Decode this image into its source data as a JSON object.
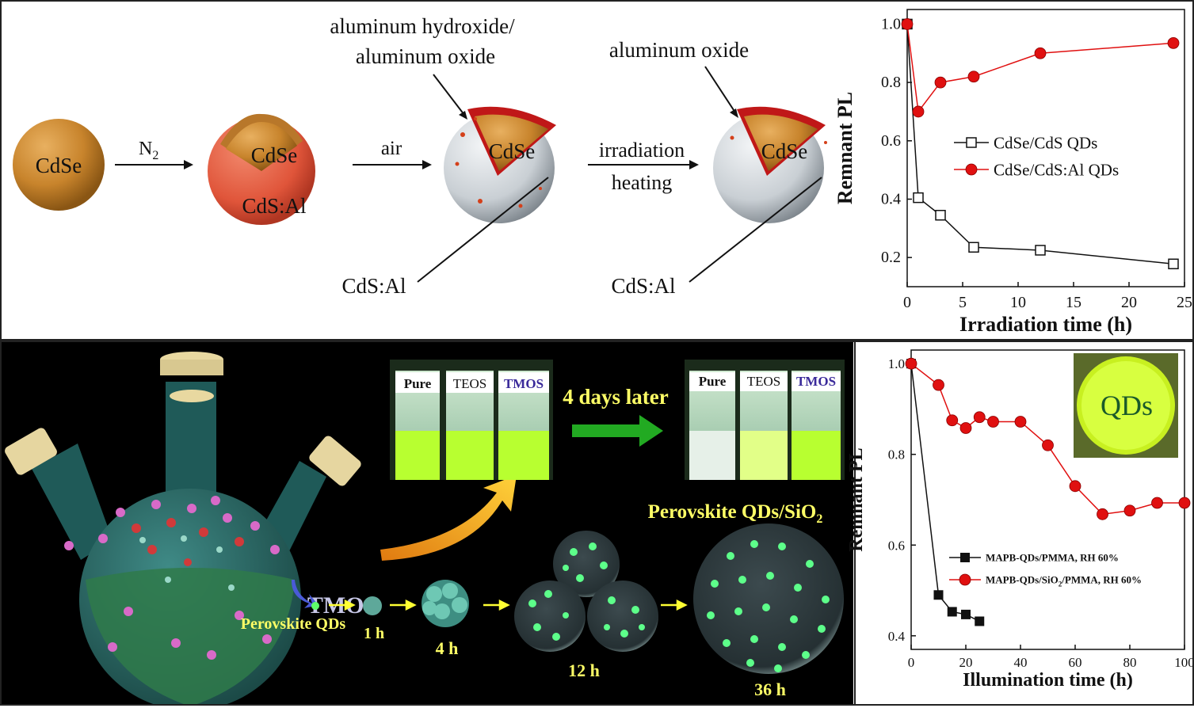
{
  "scheme": {
    "sphere1_label": "CdSe",
    "arrow1_label": "N",
    "arrow1_sub": "2",
    "sphere2_core": "CdSe",
    "sphere2_shell": "CdS:Al",
    "arrow2_label": "air",
    "callout_hydroxide_line1": "aluminum hydroxide/",
    "callout_hydroxide_line2": "aluminum oxide",
    "sphere3_core": "CdSe",
    "sphere3_pointer_label": "CdS:Al",
    "arrow3_label_line1": "irradiation",
    "arrow3_label_line2": "heating",
    "callout_oxide": "aluminum oxide",
    "sphere4_core": "CdSe",
    "sphere4_pointer_label": "CdS:Al"
  },
  "perovskite": {
    "vial_label_pure": "Pure",
    "vial_label_teos": "TEOS",
    "vial_label_tmos": "TMOS",
    "days_label": "4 days later",
    "reagent_label": "TMOS",
    "qd_label": "Perovskite QDs",
    "stage_1h": "1 h",
    "stage_4h": "4 h",
    "stage_12h": "12 h",
    "stage_36h": "36 h",
    "product_label": "Perovskite QDs/SiO",
    "product_sub": "2",
    "inset_label": "QDs"
  },
  "colors": {
    "red_series": "#e01010",
    "black_series": "#111111",
    "green_glow": "#9cff3a",
    "yellow_text": "#ffff66"
  },
  "chart_data": [
    {
      "type": "line",
      "xlabel": "Irradiation time (h)",
      "ylabel": "Remnant PL",
      "xlim": [
        0,
        25
      ],
      "ylim": [
        0.1,
        1.05
      ],
      "xticks": [
        0,
        5,
        10,
        15,
        20,
        25
      ],
      "yticks": [
        0.2,
        0.4,
        0.6,
        0.8,
        1.0
      ],
      "legend_position": "center-right",
      "series": [
        {
          "name": "CdSe/CdS QDs",
          "marker": "open-square",
          "color": "#111111",
          "x": [
            0,
            1,
            3,
            6,
            12,
            24
          ],
          "y": [
            1.0,
            0.405,
            0.345,
            0.235,
            0.225,
            0.178
          ]
        },
        {
          "name": "CdSe/CdS:Al QDs",
          "marker": "filled-circle",
          "color": "#e01010",
          "x": [
            0,
            1,
            3,
            6,
            12,
            24
          ],
          "y": [
            1.0,
            0.7,
            0.8,
            0.82,
            0.9,
            0.935
          ]
        }
      ]
    },
    {
      "type": "line",
      "xlabel": "Illumination time (h)",
      "ylabel": "Remnant PL",
      "xlim": [
        0,
        100
      ],
      "ylim": [
        0.37,
        1.03
      ],
      "xticks": [
        0,
        20,
        40,
        60,
        80,
        100
      ],
      "yticks": [
        0.4,
        0.6,
        0.8,
        1.0
      ],
      "legend_position": "bottom-right",
      "series": [
        {
          "name": "MAPB-QDs/PMMA, RH 60%",
          "marker": "filled-square",
          "color": "#111111",
          "x": [
            0,
            10,
            15,
            20,
            25
          ],
          "y": [
            1.0,
            0.49,
            0.453,
            0.447,
            0.432
          ]
        },
        {
          "name": "MAPB-QDs/SiO",
          "name_sub": "2",
          "name_tail": "/PMMA, RH 60%",
          "marker": "filled-circle",
          "color": "#e01010",
          "x": [
            0,
            10,
            15,
            20,
            25,
            30,
            40,
            50,
            60,
            70,
            80,
            90,
            100
          ],
          "y": [
            1.0,
            0.953,
            0.875,
            0.858,
            0.882,
            0.872,
            0.872,
            0.82,
            0.73,
            0.668,
            0.676,
            0.693,
            0.693
          ]
        }
      ]
    }
  ]
}
